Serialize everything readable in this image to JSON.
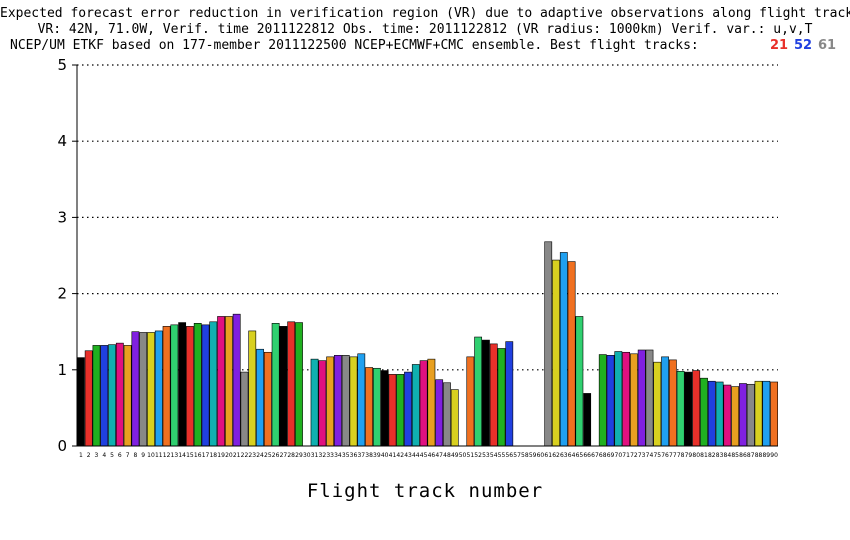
{
  "title_lines": [
    "Expected forecast error reduction in verification region (VR) due to adaptive observations along flight tracks.",
    "VR: 42N, 71.0W, Verif. time 2011122812 Obs. time: 2011122812 (VR radius: 1000km)  Verif. var.: u,v,T",
    "NCEP/UM ETKF based on 177-member 2011122500 NCEP+ECMWF+CMC ensemble. Best flight tracks:"
  ],
  "best_tracks": [
    {
      "label": "21",
      "color": "#e8302a"
    },
    {
      "label": "52",
      "color": "#2040e0"
    },
    {
      "label": "61",
      "color": "#888888"
    }
  ],
  "chart_data": {
    "type": "bar",
    "xlabel": "Flight track number",
    "ylabel": "",
    "ylim": [
      0,
      5
    ],
    "yticks": [
      "0",
      "1",
      "2",
      "3",
      "4",
      "5"
    ],
    "grid": "horizontal dotted",
    "categories": [
      "1",
      "2",
      "3",
      "4",
      "5",
      "6",
      "7",
      "8",
      "9",
      "10",
      "11",
      "12",
      "13",
      "14",
      "15",
      "16",
      "17",
      "18",
      "19",
      "20",
      "21",
      "22",
      "23",
      "24",
      "25",
      "26",
      "27",
      "28",
      "29",
      "30",
      "31",
      "32",
      "33",
      "34",
      "35",
      "36",
      "37",
      "38",
      "39",
      "40",
      "41",
      "42",
      "43",
      "44",
      "45",
      "46",
      "47",
      "48",
      "49",
      "50",
      "51",
      "52",
      "53",
      "54",
      "55",
      "56",
      "57",
      "58",
      "59",
      "60",
      "61",
      "62",
      "63",
      "64",
      "65",
      "66",
      "67",
      "68",
      "69",
      "70",
      "71",
      "72",
      "73",
      "74",
      "75",
      "76",
      "77",
      "78",
      "79",
      "80",
      "81",
      "82",
      "83",
      "84",
      "85",
      "86",
      "87",
      "88",
      "89",
      "90"
    ],
    "values": [
      1.16,
      1.25,
      1.32,
      1.32,
      1.33,
      1.35,
      1.32,
      1.5,
      1.49,
      1.49,
      1.51,
      1.57,
      1.59,
      1.62,
      1.57,
      1.61,
      1.59,
      1.63,
      1.7,
      1.7,
      1.73,
      0.97,
      1.51,
      1.27,
      1.23,
      1.61,
      1.57,
      1.63,
      1.62,
      0,
      1.14,
      1.12,
      1.17,
      1.19,
      1.19,
      1.17,
      1.21,
      1.03,
      1.02,
      0.99,
      0.94,
      0.94,
      0.97,
      1.07,
      1.12,
      1.14,
      0.87,
      0.83,
      0.74,
      0,
      1.17,
      1.43,
      1.39,
      1.34,
      1.28,
      1.37,
      0,
      0,
      0,
      0,
      2.68,
      2.44,
      2.54,
      2.42,
      1.7,
      0.69,
      0,
      1.2,
      1.19,
      1.24,
      1.23,
      1.21,
      1.26,
      1.26,
      1.1,
      1.17,
      1.13,
      0.98,
      0.97,
      0.99,
      0.89,
      0.85,
      0.84,
      0.8,
      0.78,
      0.82,
      0.81,
      0.85,
      0.85,
      0.84
    ],
    "bar_colors": [
      "#000000",
      "#e8302a",
      "#20b020",
      "#2040e0",
      "#10b0b0",
      "#e01080",
      "#e8a020",
      "#8020e0",
      "#888888",
      "#d8d020",
      "#20a0f0",
      "#f07020",
      "#30d070"
    ]
  }
}
